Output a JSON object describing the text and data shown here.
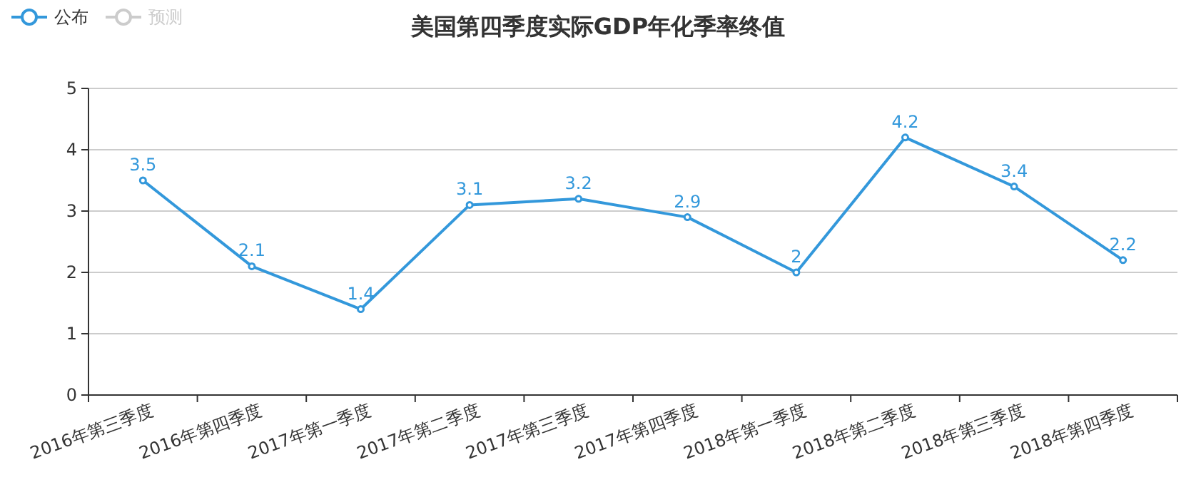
{
  "chart_data": {
    "type": "line",
    "title": "美国第四季度实际GDP年化季率终值",
    "categories": [
      "2016年第三季度",
      "2016年第四季度",
      "2017年第一季度",
      "2017年第二季度",
      "2017年第三季度",
      "2017年第四季度",
      "2018年第一季度",
      "2018年第二季度",
      "2018年第三季度",
      "2018年第四季度"
    ],
    "series": [
      {
        "name": "公布",
        "color": "#3398db",
        "values": [
          3.5,
          2.1,
          1.4,
          3.1,
          3.2,
          2.9,
          2,
          4.2,
          3.4,
          2.2
        ]
      },
      {
        "name": "预测",
        "color": "#cccccc",
        "values": [
          null,
          null,
          null,
          null,
          null,
          null,
          null,
          null,
          null,
          null
        ]
      }
    ],
    "ylim": [
      0,
      5
    ],
    "yticks": [
      0,
      1,
      2,
      3,
      4,
      5
    ],
    "grid": "y",
    "legend": "top left",
    "marker": "circle",
    "line_style": "solid",
    "data_labels": true
  }
}
